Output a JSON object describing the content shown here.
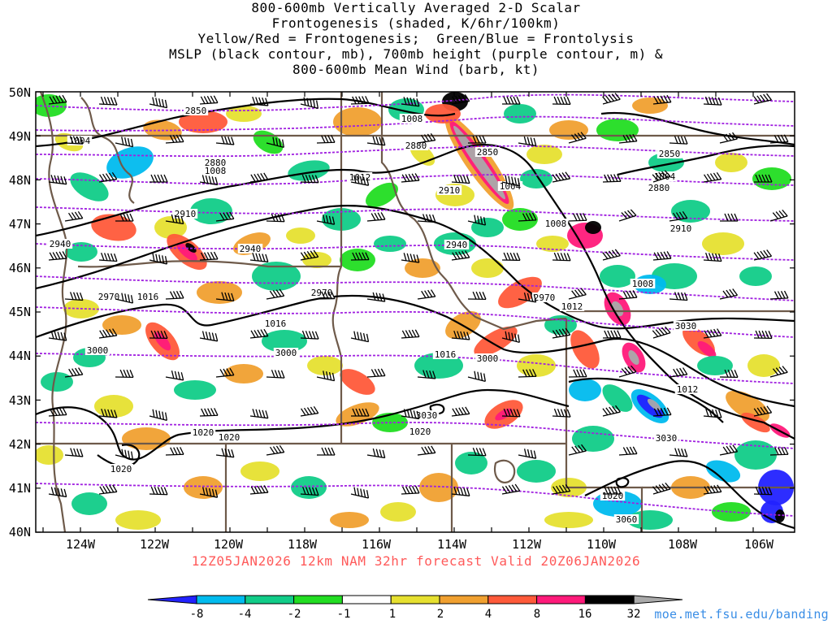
{
  "title": {
    "line1": "800-600mb Vertically Averaged 2-D Scalar",
    "line2": "Frontogenesis (shaded, K/6hr/100km)",
    "line3": "Yellow/Red = Frontogenesis;  Green/Blue = Frontolysis",
    "line4": "MSLP (black contour, mb), 700mb height (purple contour, m) &",
    "line5": "800-600mb Mean Wind (barb, kt)"
  },
  "footer": {
    "run_info": "12Z05JAN2026 12km NAM 32hr forecast Valid 20Z06JAN2026",
    "credit": "moe.met.fsu.edu/banding"
  },
  "axes": {
    "lat_labels": [
      "50N",
      "49N",
      "48N",
      "47N",
      "46N",
      "45N",
      "44N",
      "43N",
      "42N",
      "41N",
      "40N"
    ],
    "lon_labels": [
      "124W",
      "122W",
      "120W",
      "118W",
      "116W",
      "114W",
      "112W",
      "110W",
      "108W",
      "106W"
    ]
  },
  "colorbar": {
    "labels": [
      "-8",
      "-4",
      "-2",
      "-1",
      "1",
      "2",
      "4",
      "8",
      "16",
      "32"
    ],
    "colors": [
      "#2222ff",
      "#00bbee",
      "#11cc88",
      "#22dd22",
      "#ffffff",
      "#e6e030",
      "#f0a030",
      "#ff5a3a",
      "#ff1a7a",
      "#000000",
      "#aaaaaa"
    ]
  },
  "mslp_labels": [
    "1004",
    "1008",
    "1008",
    "1012",
    "1016",
    "1016",
    "1020",
    "1020",
    "1020",
    "1008",
    "1004",
    "1008",
    "1012",
    "1016",
    "1020",
    "1012",
    "1004",
    "1008",
    "1012",
    "1020"
  ],
  "height_labels": [
    "2850",
    "2880",
    "2910",
    "2940",
    "2970",
    "3000",
    "3030",
    "2850",
    "2880",
    "2910",
    "2940",
    "2970",
    "3000",
    "3030",
    "2850",
    "2880",
    "2910",
    "2940",
    "2970",
    "3000",
    "3030",
    "3060"
  ]
}
